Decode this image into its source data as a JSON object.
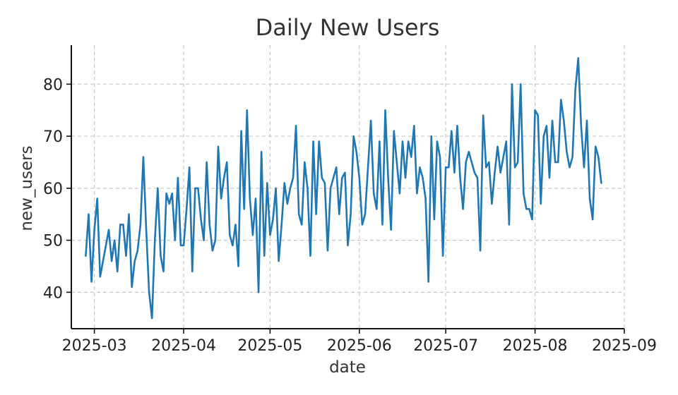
{
  "chart_data": {
    "type": "line",
    "title": "Daily New Users",
    "xlabel": "date",
    "ylabel": "new_users",
    "xlim": [
      "2025-02-21",
      "2025-09-01"
    ],
    "ylim": [
      33,
      87.5
    ],
    "x_ticks": [
      "2025-03-01",
      "2025-04-01",
      "2025-05-01",
      "2025-06-01",
      "2025-07-01",
      "2025-08-01",
      "2025-09-01"
    ],
    "x_tick_labels": [
      "2025-03",
      "2025-04",
      "2025-05",
      "2025-06",
      "2025-07",
      "2025-08",
      "2025-09"
    ],
    "y_ticks": [
      40,
      50,
      60,
      70,
      80
    ],
    "y_tick_labels": [
      "40",
      "50",
      "60",
      "70",
      "80"
    ],
    "grid": true,
    "legend": "none",
    "start_date": "2025-02-26",
    "series": [
      {
        "color": "#1f77b4",
        "values": [
          47,
          55,
          42,
          52,
          58,
          43,
          46,
          49,
          52,
          46,
          50,
          44,
          53,
          53,
          47,
          55,
          41,
          46,
          48,
          53,
          66,
          52,
          40,
          35,
          50,
          60,
          47,
          44,
          59,
          57,
          59,
          50,
          62,
          49,
          49,
          56,
          64,
          44,
          60,
          60,
          54,
          50,
          65,
          53,
          48,
          50,
          68,
          58,
          62,
          65,
          51,
          49,
          53,
          45,
          71,
          56,
          75,
          58,
          51,
          58,
          40,
          67,
          47,
          61,
          51,
          54,
          60,
          46,
          53,
          61,
          57,
          60,
          62,
          72,
          55,
          53,
          65,
          60,
          47,
          69,
          55,
          69,
          62,
          61,
          48,
          60,
          62,
          64,
          55,
          62,
          63,
          49,
          55,
          70,
          67,
          62,
          53,
          55,
          64,
          73,
          59,
          56,
          69,
          53,
          75,
          62,
          52,
          71,
          65,
          59,
          69,
          62,
          69,
          66,
          72,
          59,
          64,
          62,
          58,
          42,
          70,
          54,
          69,
          66,
          47,
          64,
          64,
          71,
          63,
          72,
          62,
          56,
          65,
          67,
          65,
          63,
          62,
          48,
          74,
          64,
          65,
          57,
          63,
          68,
          63,
          66,
          69,
          53,
          80,
          64,
          65,
          80,
          59,
          56,
          56,
          54,
          75,
          74,
          57,
          70,
          72,
          62,
          73,
          65,
          65,
          77,
          73,
          67,
          64,
          66,
          79,
          85,
          72,
          64,
          73,
          58,
          54,
          68,
          66,
          61
        ]
      }
    ]
  }
}
